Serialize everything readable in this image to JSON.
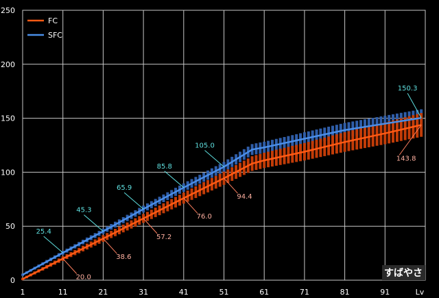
{
  "chart_data": {
    "type": "line",
    "title": "",
    "xlabel": "Lv",
    "ylabel": "",
    "xlim": [
      1,
      101
    ],
    "ylim": [
      0,
      250
    ],
    "x_ticks": [
      "1",
      "11",
      "21",
      "31",
      "41",
      "51",
      "61",
      "71",
      "81",
      "91"
    ],
    "y_ticks": [
      "0",
      "50",
      "100",
      "150",
      "200",
      "250"
    ],
    "grid": true,
    "legend_position": "top-left",
    "series": [
      {
        "name": "FC",
        "color": "#ff5a14",
        "points": [
          [
            1,
            1.0
          ],
          [
            11,
            20.0
          ],
          [
            21,
            38.6
          ],
          [
            31,
            57.2
          ],
          [
            41,
            76.0
          ],
          [
            51,
            94.4
          ],
          [
            58,
            108.0
          ],
          [
            61,
            111.0
          ],
          [
            71,
            119.0
          ],
          [
            81,
            128.0
          ],
          [
            91,
            136.0
          ],
          [
            100,
            143.8
          ]
        ],
        "labels": [
          {
            "x": 11,
            "y": 20.0,
            "text": "20.0"
          },
          {
            "x": 21,
            "y": 38.6,
            "text": "38.6"
          },
          {
            "x": 31,
            "y": 57.2,
            "text": "57.2"
          },
          {
            "x": 41,
            "y": 76.0,
            "text": "76.0"
          },
          {
            "x": 51,
            "y": 94.4,
            "text": "94.4"
          },
          {
            "x": 100,
            "y": 143.8,
            "text": "143.8"
          }
        ]
      },
      {
        "name": "SFC",
        "color": "#4a8ee8",
        "points": [
          [
            1,
            5.0
          ],
          [
            11,
            25.4
          ],
          [
            21,
            45.3
          ],
          [
            31,
            65.9
          ],
          [
            41,
            85.8
          ],
          [
            51,
            105.0
          ],
          [
            58,
            121.0
          ],
          [
            61,
            123.0
          ],
          [
            71,
            131.0
          ],
          [
            81,
            139.0
          ],
          [
            91,
            145.0
          ],
          [
            100,
            150.3
          ]
        ],
        "labels": [
          {
            "x": 11,
            "y": 25.4,
            "text": "25.4"
          },
          {
            "x": 21,
            "y": 45.3,
            "text": "45.3"
          },
          {
            "x": 31,
            "y": 65.9,
            "text": "65.9"
          },
          {
            "x": 41,
            "y": 85.8,
            "text": "85.8"
          },
          {
            "x": 51,
            "y": 105.0,
            "text": "105.0"
          },
          {
            "x": 100,
            "y": 150.3,
            "text": "150.3"
          }
        ]
      }
    ],
    "range_spread": {
      "FC": 10,
      "SFC": 7
    },
    "watermark": "すばやさ"
  }
}
